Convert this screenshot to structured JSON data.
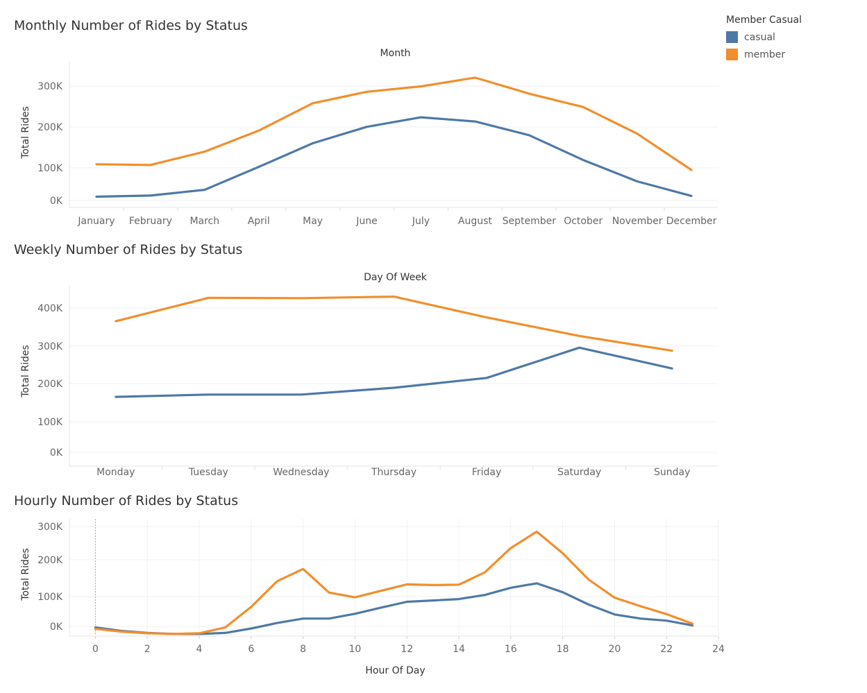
{
  "legend": {
    "title": "Member Casual",
    "items": [
      {
        "label": "casual",
        "color": "#4e79a7"
      },
      {
        "label": "member",
        "color": "#f28e2b"
      }
    ]
  },
  "chart_data": [
    {
      "type": "line",
      "title": "Monthly Number of Rides by Status",
      "header": "Month",
      "xlabel": "",
      "ylabel": "Total Rides",
      "categories": [
        "January",
        "February",
        "March",
        "April",
        "May",
        "June",
        "July",
        "August",
        "September",
        "October",
        "November",
        "December"
      ],
      "ylim": [
        0,
        360000
      ],
      "yticks": [
        "0K",
        "100K",
        "200K",
        "300K"
      ],
      "series": [
        {
          "name": "casual",
          "color": "#4e79a7",
          "values": [
            10000,
            13000,
            28000,
            88000,
            150000,
            193000,
            218000,
            207000,
            171000,
            106000,
            50000,
            12000
          ]
        },
        {
          "name": "member",
          "color": "#f28e2b",
          "values": [
            95000,
            93000,
            128000,
            183000,
            255000,
            285000,
            299000,
            322000,
            280000,
            245000,
            175000,
            80000
          ]
        }
      ]
    },
    {
      "type": "line",
      "title": "Weekly Number of Rides by Status",
      "header": "Day Of Week",
      "xlabel": "",
      "ylabel": "Total Rides",
      "categories": [
        "Monday",
        "Tuesday",
        "Wednesday",
        "Thursday",
        "Friday",
        "Saturday",
        "Sunday"
      ],
      "ylim": [
        0,
        460000
      ],
      "yticks": [
        "0K",
        "100K",
        "200K",
        "300K",
        "400K"
      ],
      "series": [
        {
          "name": "casual",
          "color": "#4e79a7",
          "values": [
            165000,
            171000,
            171000,
            189000,
            215000,
            295000,
            240000
          ]
        },
        {
          "name": "member",
          "color": "#f28e2b",
          "values": [
            365000,
            427000,
            426000,
            430000,
            375000,
            326000,
            287000
          ]
        }
      ]
    },
    {
      "type": "line",
      "title": "Hourly Number of Rides by Status",
      "header": "",
      "xlabel": "Hour Of Day",
      "ylabel": "Total Rides",
      "x": [
        0,
        1,
        2,
        3,
        4,
        5,
        6,
        7,
        8,
        9,
        10,
        11,
        12,
        13,
        14,
        15,
        16,
        17,
        18,
        19,
        20,
        21,
        22,
        23
      ],
      "xlim": [
        -1,
        24
      ],
      "xticks": [
        "0",
        "2",
        "4",
        "6",
        "8",
        "10",
        "12",
        "14",
        "16",
        "18",
        "20",
        "22",
        "24"
      ],
      "ylim": [
        -15000,
        315000
      ],
      "yticks": [
        "0K",
        "100K",
        "200K",
        "300K"
      ],
      "series": [
        {
          "name": "casual",
          "color": "#4e79a7",
          "values": [
            5000,
            -5000,
            -11000,
            -14000,
            -14000,
            -11000,
            2000,
            18000,
            31000,
            31000,
            45000,
            63000,
            80000,
            84000,
            88000,
            100000,
            121000,
            134000,
            108000,
            72000,
            43000,
            31000,
            25000,
            11000
          ]
        },
        {
          "name": "member",
          "color": "#f28e2b",
          "values": [
            1000,
            -7000,
            -12000,
            -14000,
            -12000,
            5000,
            65000,
            140000,
            176000,
            107000,
            93000,
            112000,
            131000,
            129000,
            130000,
            166000,
            237000,
            285000,
            222000,
            145000,
            92000,
            67000,
            44000,
            16000
          ]
        }
      ]
    }
  ]
}
